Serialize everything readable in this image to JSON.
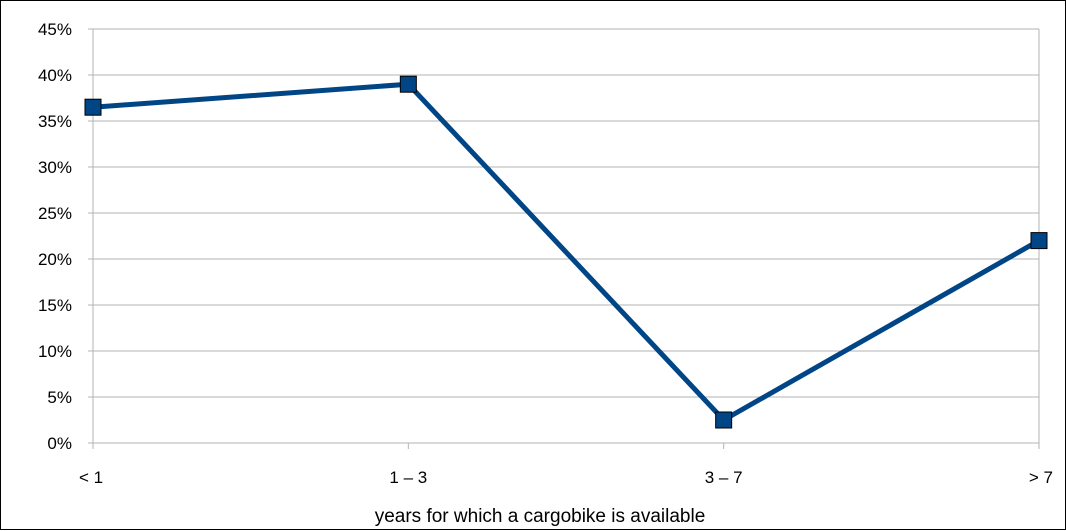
{
  "chart_data": {
    "type": "line",
    "title": "",
    "xlabel": "years for which a cargobike is available",
    "ylabel": "",
    "categories": [
      "< 1",
      "1 – 3",
      "3 – 7",
      "> 7"
    ],
    "series": [
      {
        "values": [
          0.365,
          0.39,
          0.025,
          0.22
        ],
        "color": "#004586",
        "marker": "square"
      }
    ],
    "ylim": [
      0,
      0.45
    ],
    "yticks": [
      0,
      0.05,
      0.1,
      0.15,
      0.2,
      0.25,
      0.3,
      0.35,
      0.4,
      0.45
    ],
    "ytick_labels": [
      "0%",
      "5%",
      "10%",
      "15%",
      "20%",
      "25%",
      "30%",
      "35%",
      "40%",
      "45%"
    ],
    "grid": true,
    "legend": "none"
  }
}
